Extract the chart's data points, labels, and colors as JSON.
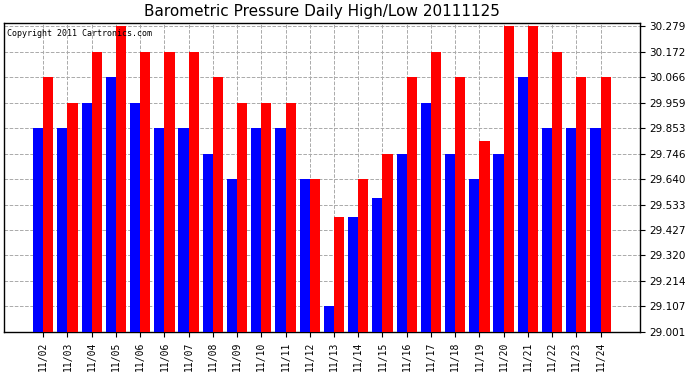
{
  "title": "Barometric Pressure Daily High/Low 20111125",
  "copyright": "Copyright 2011 Cartronics.com",
  "categories": [
    "11/02",
    "11/03",
    "11/04",
    "11/05",
    "11/06",
    "11/06",
    "11/07",
    "11/08",
    "11/09",
    "11/10",
    "11/11",
    "11/12",
    "11/13",
    "11/14",
    "11/15",
    "11/16",
    "11/17",
    "11/18",
    "11/19",
    "11/20",
    "11/21",
    "11/22",
    "11/23",
    "11/24"
  ],
  "highs": [
    30.066,
    29.959,
    30.172,
    30.279,
    30.172,
    30.172,
    30.172,
    30.066,
    29.959,
    29.959,
    29.959,
    29.64,
    29.48,
    29.64,
    29.746,
    30.066,
    30.172,
    30.066,
    29.8,
    30.279,
    30.279,
    30.172,
    30.066,
    30.066
  ],
  "lows": [
    29.853,
    29.853,
    29.959,
    30.066,
    29.959,
    29.853,
    29.853,
    29.746,
    29.64,
    29.853,
    29.853,
    29.64,
    29.107,
    29.48,
    29.56,
    29.746,
    29.959,
    29.746,
    29.64,
    29.746,
    30.066,
    29.853,
    29.853,
    29.853
  ],
  "high_color": "#ff0000",
  "low_color": "#0000ff",
  "background_color": "#ffffff",
  "grid_color": "#aaaaaa",
  "ybase": 29.001,
  "ylim_min": 29.001,
  "ylim_max": 30.292,
  "yticks": [
    29.001,
    29.107,
    29.214,
    29.32,
    29.427,
    29.533,
    29.64,
    29.746,
    29.853,
    29.959,
    30.066,
    30.172,
    30.279
  ]
}
